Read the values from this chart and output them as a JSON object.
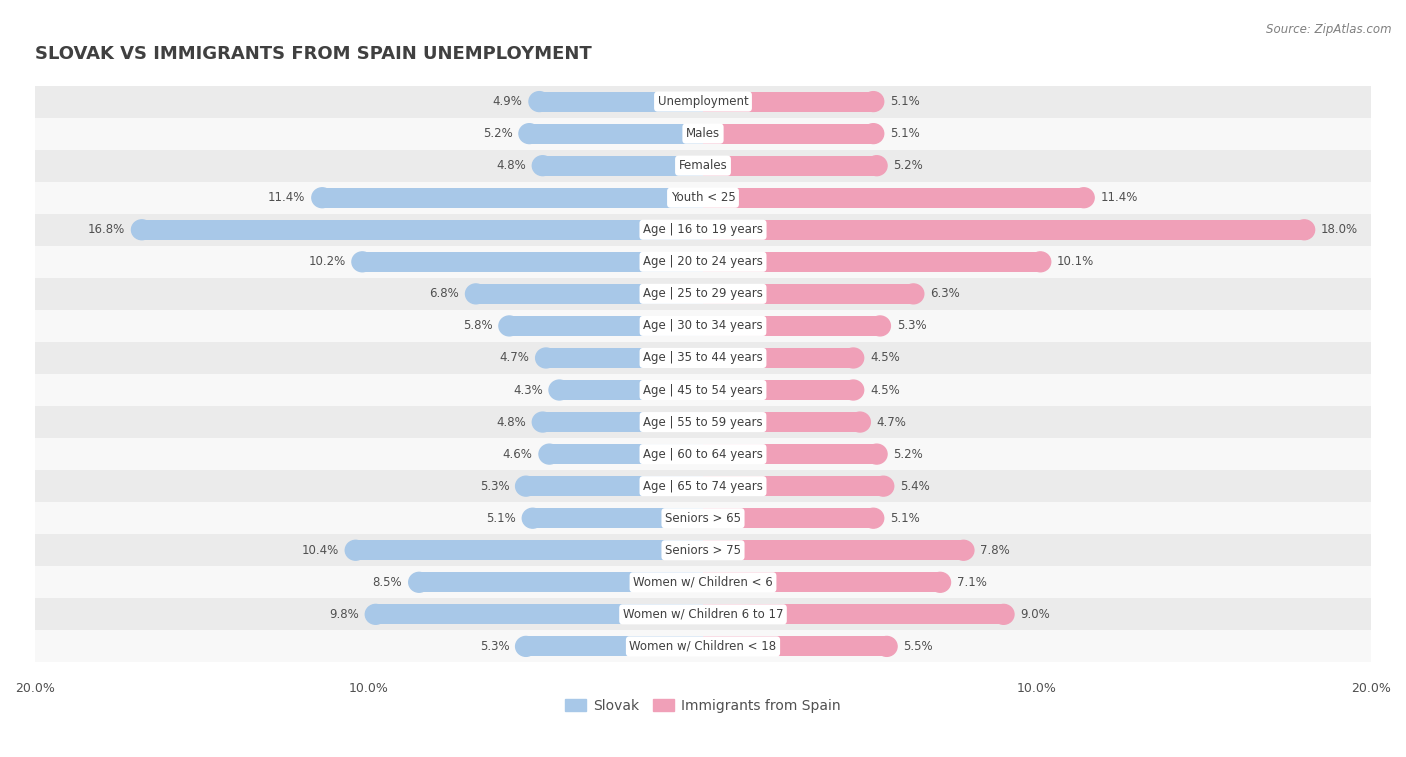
{
  "title": "SLOVAK VS IMMIGRANTS FROM SPAIN UNEMPLOYMENT",
  "source": "Source: ZipAtlas.com",
  "categories": [
    "Unemployment",
    "Males",
    "Females",
    "Youth < 25",
    "Age | 16 to 19 years",
    "Age | 20 to 24 years",
    "Age | 25 to 29 years",
    "Age | 30 to 34 years",
    "Age | 35 to 44 years",
    "Age | 45 to 54 years",
    "Age | 55 to 59 years",
    "Age | 60 to 64 years",
    "Age | 65 to 74 years",
    "Seniors > 65",
    "Seniors > 75",
    "Women w/ Children < 6",
    "Women w/ Children 6 to 17",
    "Women w/ Children < 18"
  ],
  "slovak": [
    4.9,
    5.2,
    4.8,
    11.4,
    16.8,
    10.2,
    6.8,
    5.8,
    4.7,
    4.3,
    4.8,
    4.6,
    5.3,
    5.1,
    10.4,
    8.5,
    9.8,
    5.3
  ],
  "immigrants": [
    5.1,
    5.1,
    5.2,
    11.4,
    18.0,
    10.1,
    6.3,
    5.3,
    4.5,
    4.5,
    4.7,
    5.2,
    5.4,
    5.1,
    7.8,
    7.1,
    9.0,
    5.5
  ],
  "slovak_color": "#a8c8e8",
  "immigrant_color": "#f0a0b8",
  "bar_height": 0.62,
  "xlim": 20.0,
  "background_color": "#ffffff",
  "row_bg_even": "#ebebeb",
  "row_bg_odd": "#f8f8f8",
  "label_bg": "#ffffff",
  "title_color": "#404040",
  "source_color": "#808080",
  "value_color": "#505050"
}
